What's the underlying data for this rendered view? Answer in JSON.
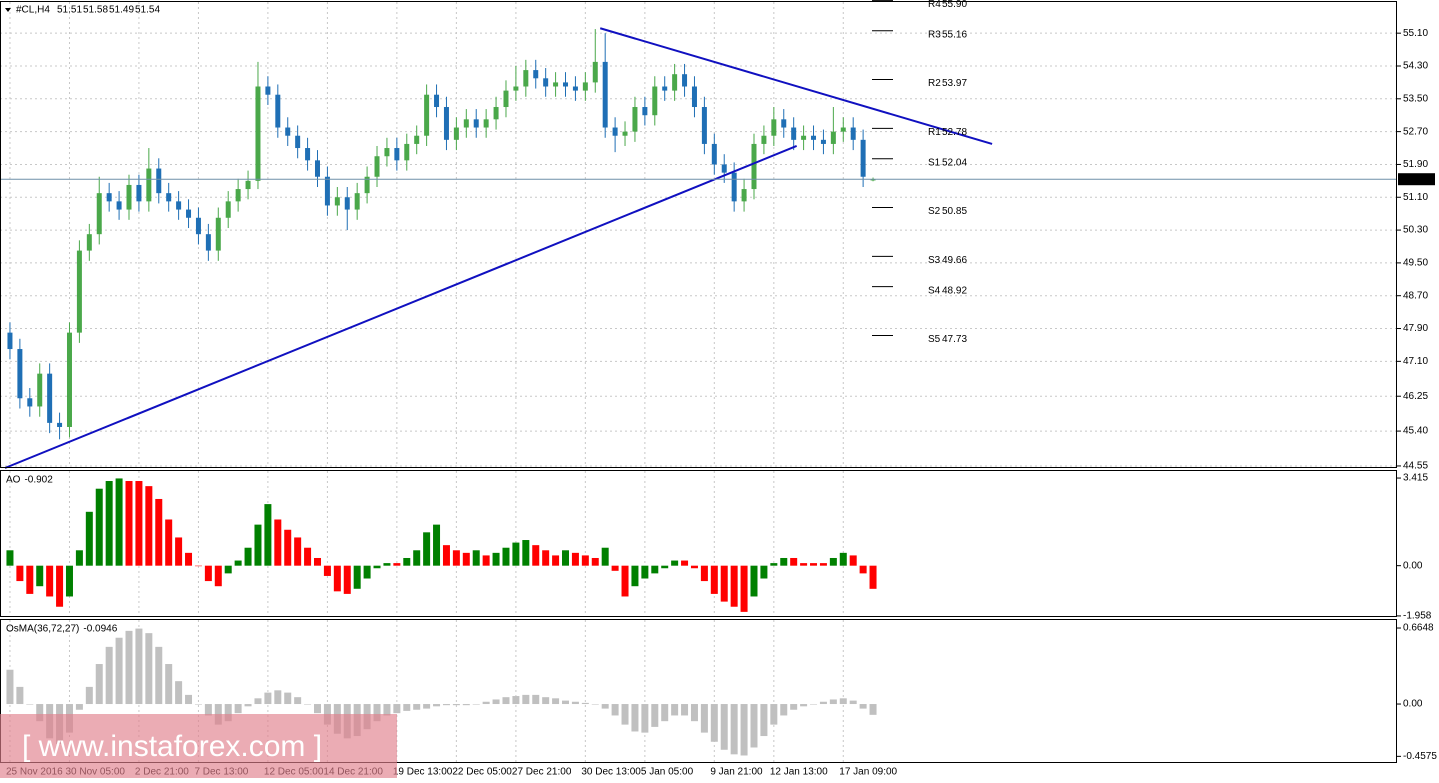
{
  "chart_data": [
    {
      "type": "candlestick",
      "title": "#CL,H4",
      "bull_color": "#4aa84a",
      "bear_color": "#1f6fb5",
      "open": [
        47.8,
        47.4,
        46.2,
        46.0,
        46.8,
        45.6,
        45.5,
        47.8,
        49.8,
        50.2,
        51.2,
        51.0,
        50.8,
        51.4,
        51.0,
        51.8,
        51.2,
        51.0,
        50.8,
        50.6,
        50.2,
        49.8,
        50.6,
        51.0,
        51.3,
        51.5,
        53.8,
        53.6,
        52.8,
        52.6,
        52.3,
        52.0,
        51.6,
        50.9,
        51.1,
        50.8,
        51.2,
        51.6,
        52.1,
        52.3,
        52.0,
        52.4,
        52.6,
        53.6,
        53.3,
        52.5,
        52.8,
        53.0,
        52.8,
        53.0,
        53.3,
        53.7,
        53.8,
        54.2,
        54.0,
        53.8,
        53.9,
        53.8,
        53.7,
        53.9,
        54.4,
        52.8,
        52.6,
        52.7,
        53.3,
        53.1,
        53.8,
        53.7,
        54.1,
        53.8,
        53.3,
        52.4,
        51.9,
        51.7,
        51.0,
        51.3,
        52.4,
        52.6,
        53.0,
        52.8,
        52.5,
        52.6,
        52.5,
        52.4,
        52.7,
        52.8,
        52.5,
        51.51
      ],
      "high": [
        48.05,
        47.65,
        46.45,
        47.05,
        47.05,
        45.85,
        48.05,
        50.05,
        50.45,
        51.6,
        51.45,
        51.25,
        51.65,
        51.65,
        52.3,
        52.05,
        51.45,
        51.25,
        51.05,
        50.85,
        50.45,
        50.85,
        51.25,
        51.55,
        51.75,
        54.4,
        54.05,
        53.85,
        53.05,
        52.85,
        52.55,
        52.25,
        51.85,
        51.35,
        51.35,
        51.45,
        51.85,
        52.35,
        52.55,
        52.55,
        52.65,
        52.85,
        53.85,
        53.85,
        53.55,
        53.05,
        53.25,
        53.25,
        53.25,
        53.55,
        53.95,
        54.3,
        54.45,
        54.45,
        54.25,
        54.15,
        54.15,
        54.05,
        54.15,
        55.2,
        55.1,
        53.05,
        52.95,
        53.55,
        53.55,
        54.05,
        54.05,
        54.35,
        54.35,
        54.05,
        53.55,
        52.65,
        52.15,
        51.95,
        51.55,
        52.65,
        52.85,
        53.3,
        53.25,
        53.05,
        52.85,
        52.85,
        52.75,
        53.3,
        53.05,
        53.05,
        52.75,
        51.58
      ],
      "low": [
        47.15,
        45.95,
        45.75,
        45.75,
        45.35,
        45.2,
        45.25,
        47.55,
        49.55,
        49.95,
        50.75,
        50.55,
        50.55,
        50.75,
        50.75,
        50.95,
        50.75,
        50.55,
        50.35,
        49.95,
        49.55,
        49.55,
        50.35,
        50.75,
        51.05,
        51.3,
        53.35,
        52.55,
        52.35,
        52.05,
        51.75,
        51.35,
        50.65,
        50.65,
        50.3,
        50.55,
        50.95,
        51.35,
        51.85,
        51.75,
        51.75,
        52.15,
        52.35,
        53.05,
        52.25,
        52.25,
        52.55,
        52.55,
        52.55,
        52.75,
        53.05,
        53.45,
        53.55,
        53.75,
        53.55,
        53.55,
        53.55,
        53.45,
        53.45,
        53.65,
        52.55,
        52.2,
        52.35,
        52.45,
        52.85,
        52.85,
        53.45,
        53.45,
        53.55,
        53.05,
        52.15,
        51.65,
        51.45,
        50.75,
        50.75,
        51.05,
        52.15,
        52.35,
        52.55,
        52.25,
        52.25,
        52.25,
        52.15,
        52.15,
        52.45,
        52.25,
        51.35,
        51.49
      ],
      "close": [
        47.4,
        46.2,
        46.0,
        46.8,
        45.6,
        45.5,
        47.8,
        49.8,
        50.2,
        51.2,
        51.0,
        50.8,
        51.4,
        51.0,
        51.8,
        51.2,
        51.0,
        50.8,
        50.6,
        50.2,
        49.8,
        50.6,
        51.0,
        51.3,
        51.5,
        53.8,
        53.6,
        52.8,
        52.6,
        52.3,
        52.0,
        51.6,
        50.9,
        51.1,
        50.8,
        51.2,
        51.6,
        52.1,
        52.3,
        52.0,
        52.4,
        52.6,
        53.6,
        53.3,
        52.5,
        52.8,
        53.0,
        52.8,
        53.0,
        53.3,
        53.7,
        53.8,
        54.2,
        54.0,
        53.8,
        53.9,
        53.8,
        53.7,
        53.9,
        54.4,
        52.8,
        52.6,
        52.7,
        53.3,
        53.1,
        53.8,
        53.7,
        54.1,
        53.8,
        53.3,
        52.4,
        51.9,
        51.7,
        51.0,
        51.3,
        52.4,
        52.6,
        53.0,
        52.8,
        52.5,
        52.6,
        52.5,
        52.4,
        52.7,
        52.8,
        52.5,
        51.6,
        51.54
      ],
      "ylim": [
        44.5,
        55.86
      ],
      "yticks": [
        {
          "value": 55.1,
          "label": "55.10"
        },
        {
          "value": 54.3,
          "label": "54.30"
        },
        {
          "value": 53.5,
          "label": "53.50"
        },
        {
          "value": 52.7,
          "label": "52.70"
        },
        {
          "value": 51.9,
          "label": "51.90"
        },
        {
          "value": 51.1,
          "label": "51.10"
        },
        {
          "value": 50.3,
          "label": "50.30"
        },
        {
          "value": 49.5,
          "label": "49.50"
        },
        {
          "value": 48.7,
          "label": "48.70"
        },
        {
          "value": 47.9,
          "label": "47.90"
        },
        {
          "value": 47.1,
          "label": "47.10"
        },
        46.25,
        {
          "value": 45.4,
          "label": "45.40"
        },
        44.55
      ],
      "grid": true,
      "pivots": [
        {
          "name": "R4",
          "value": 55.9,
          "label": "55.90"
        },
        {
          "name": "R3",
          "value": 55.16
        },
        {
          "name": "R2",
          "value": 53.97
        },
        {
          "name": "R1",
          "value": 52.78
        },
        {
          "name": "S1",
          "value": 52.04
        },
        {
          "name": "S2",
          "value": 50.85
        },
        {
          "name": "S3",
          "value": 49.66
        },
        {
          "name": "S4",
          "value": 48.92
        },
        {
          "name": "S5",
          "value": 47.73
        }
      ],
      "trendlines": [
        {
          "color": "#1010c0",
          "x": [
            -0.5,
            79.3
          ],
          "y": [
            44.5,
            52.35
          ]
        },
        {
          "color": "#1010c0",
          "x": [
            59.5,
            99
          ],
          "y": [
            55.22,
            52.4
          ]
        }
      ],
      "price_line_color": "#6f8fa8"
    },
    {
      "type": "bar",
      "name": "AO",
      "up_color": "#008000",
      "down_color": "#ff0000",
      "values": [
        0.6,
        -0.6,
        -1.1,
        -0.8,
        -1.2,
        -1.6,
        -1.2,
        0.6,
        2.1,
        3.0,
        3.3,
        3.4,
        3.3,
        3.3,
        3.1,
        2.6,
        1.8,
        1.1,
        0.5,
        0.0,
        -0.6,
        -0.8,
        -0.3,
        0.2,
        0.7,
        1.6,
        2.4,
        1.8,
        1.4,
        1.1,
        0.7,
        0.3,
        -0.4,
        -1.0,
        -1.1,
        -0.9,
        -0.5,
        -0.1,
        0.1,
        0.1,
        0.3,
        0.6,
        1.3,
        1.6,
        0.8,
        0.6,
        0.5,
        0.6,
        0.4,
        0.5,
        0.7,
        0.9,
        1.0,
        0.8,
        0.6,
        0.4,
        0.6,
        0.5,
        0.4,
        0.3,
        0.7,
        -0.2,
        -1.2,
        -0.8,
        -0.5,
        -0.3,
        -0.1,
        0.2,
        0.2,
        -0.1,
        -0.6,
        -1.1,
        -1.4,
        -1.6,
        -1.8,
        -1.2,
        -0.5,
        0.1,
        0.3,
        0.3,
        0.1,
        0.1,
        0.1,
        0.3,
        0.5,
        0.4,
        -0.3,
        -0.902
      ],
      "ylim": [
        -2.0,
        3.69
      ],
      "yticks": [
        3.415,
        {
          "value": 0,
          "label": "0.00"
        },
        -1.958
      ]
    },
    {
      "type": "bar",
      "name": "OsMA(36,72,27)",
      "color": "#c0c0c0",
      "values": [
        0.3,
        0.15,
        0.0,
        -0.15,
        -0.3,
        -0.35,
        -0.25,
        -0.05,
        0.15,
        0.35,
        0.5,
        0.58,
        0.64,
        0.66,
        0.62,
        0.5,
        0.35,
        0.2,
        0.08,
        0.0,
        -0.1,
        -0.18,
        -0.15,
        -0.08,
        -0.02,
        0.05,
        0.1,
        0.12,
        0.1,
        0.06,
        0.0,
        -0.08,
        -0.18,
        -0.26,
        -0.3,
        -0.28,
        -0.22,
        -0.15,
        -0.1,
        -0.08,
        -0.06,
        -0.05,
        -0.04,
        -0.02,
        -0.01,
        -0.01,
        -0.01,
        0.0,
        0.02,
        0.04,
        0.06,
        0.07,
        0.08,
        0.08,
        0.06,
        0.05,
        0.03,
        0.02,
        0.01,
        0.0,
        -0.04,
        -0.1,
        -0.18,
        -0.24,
        -0.25,
        -0.2,
        -0.15,
        -0.1,
        -0.1,
        -0.15,
        -0.25,
        -0.33,
        -0.4,
        -0.44,
        -0.45,
        -0.38,
        -0.28,
        -0.18,
        -0.1,
        -0.05,
        -0.02,
        0.0,
        0.02,
        0.04,
        0.05,
        0.03,
        -0.04,
        -0.0946
      ],
      "ylim": [
        -0.507,
        0.735
      ],
      "yticks": [
        0.6648,
        {
          "value": 0,
          "label": "0.00"
        },
        -0.4575
      ],
      "categories": [
        "25 Nov 2016",
        null,
        null,
        null,
        null,
        null,
        "30 Nov 05:00",
        null,
        null,
        null,
        null,
        null,
        null,
        "2 Dec 21:00",
        null,
        null,
        null,
        null,
        null,
        "7 Dec 13:00",
        null,
        null,
        null,
        null,
        null,
        null,
        "12 Dec 05:00",
        null,
        null,
        null,
        null,
        null,
        "14 Dec 21:00",
        null,
        null,
        null,
        null,
        null,
        null,
        "19 Dec 13:00",
        null,
        null,
        null,
        null,
        null,
        "22 Dec 05:00",
        null,
        null,
        null,
        null,
        null,
        "27 Dec 21:00",
        null,
        null,
        null,
        null,
        null,
        null,
        "30 Dec 13:00",
        null,
        null,
        null,
        null,
        null,
        "5 Jan 05:00",
        null,
        null,
        null,
        null,
        null,
        null,
        "9 Jan 21:00",
        null,
        null,
        null,
        null,
        null,
        "12 Jan 13:00",
        null,
        null,
        null,
        null,
        null,
        null,
        "17 Jan 09:00",
        null,
        null,
        null
      ]
    }
  ],
  "watermark": "[ www.instaforex.com ]"
}
